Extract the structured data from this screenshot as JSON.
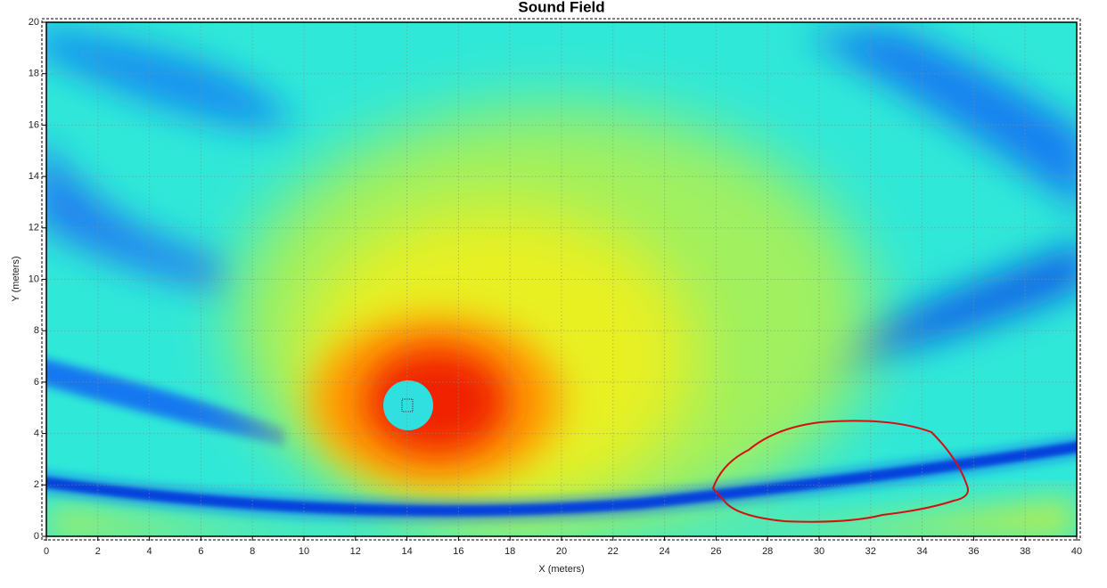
{
  "chart_data": {
    "type": "heatmap",
    "title": "Sound Field",
    "x_label": "X (meters)",
    "y_label": "Y (meters)",
    "xlim": [
      0,
      40
    ],
    "xticks": [
      0,
      2,
      4,
      6,
      8,
      10,
      12,
      14,
      16,
      18,
      20,
      22,
      24,
      26,
      28,
      30,
      32,
      34,
      36,
      38,
      40
    ],
    "ylim": [
      0,
      20
    ],
    "yticks": [
      0,
      2,
      4,
      6,
      8,
      10,
      12,
      14,
      16,
      18,
      20
    ],
    "grid": true
  }
}
